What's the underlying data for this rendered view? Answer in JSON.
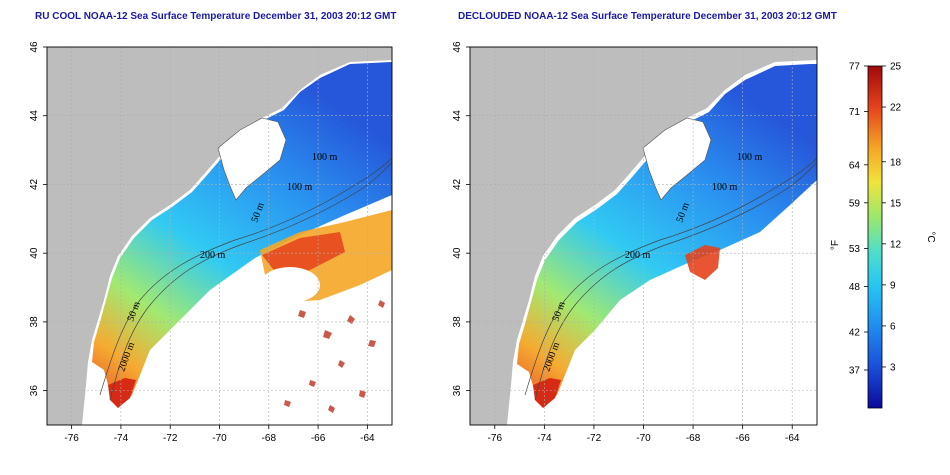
{
  "panels": [
    {
      "title": "RU COOL NOAA-12 Sea Surface Temperature December 31, 2003 20:12 GMT",
      "clouded": true
    },
    {
      "title": "DECLOUDED NOAA-12 Sea Surface Temperature December 31, 2003 20:12 GMT",
      "clouded": false
    }
  ],
  "axes": {
    "lon_ticks": [
      "-76",
      "-74",
      "-72",
      "-70",
      "-68",
      "-66",
      "-64"
    ],
    "lat_ticks": [
      "36",
      "38",
      "40",
      "42",
      "44",
      "46"
    ],
    "lon_range": [
      -77,
      -63
    ],
    "lat_range": [
      35,
      46
    ]
  },
  "depth_labels": [
    "50 m",
    "100 m",
    "100 m",
    "200 m",
    "50 m",
    "2000 m"
  ],
  "colorbar": {
    "f_label": "°F",
    "c_label": "°C",
    "f_ticks": [
      "77",
      "71",
      "64",
      "59",
      "53",
      "48",
      "42",
      "37"
    ],
    "c_ticks": [
      "25",
      "22",
      "18",
      "15",
      "12",
      "9",
      "6",
      "3"
    ],
    "c_range": [
      0,
      25
    ],
    "colors": [
      "#0a0a9c",
      "#1a4ed8",
      "#1f8ef0",
      "#26c7f2",
      "#4fe0c8",
      "#9ce86a",
      "#f0e43a",
      "#f5a626",
      "#e4421c",
      "#9e0a0a"
    ]
  },
  "colors": {
    "land": "#bdbdbd",
    "title": "#1a1aa8",
    "grid": "#b0b0b0"
  }
}
